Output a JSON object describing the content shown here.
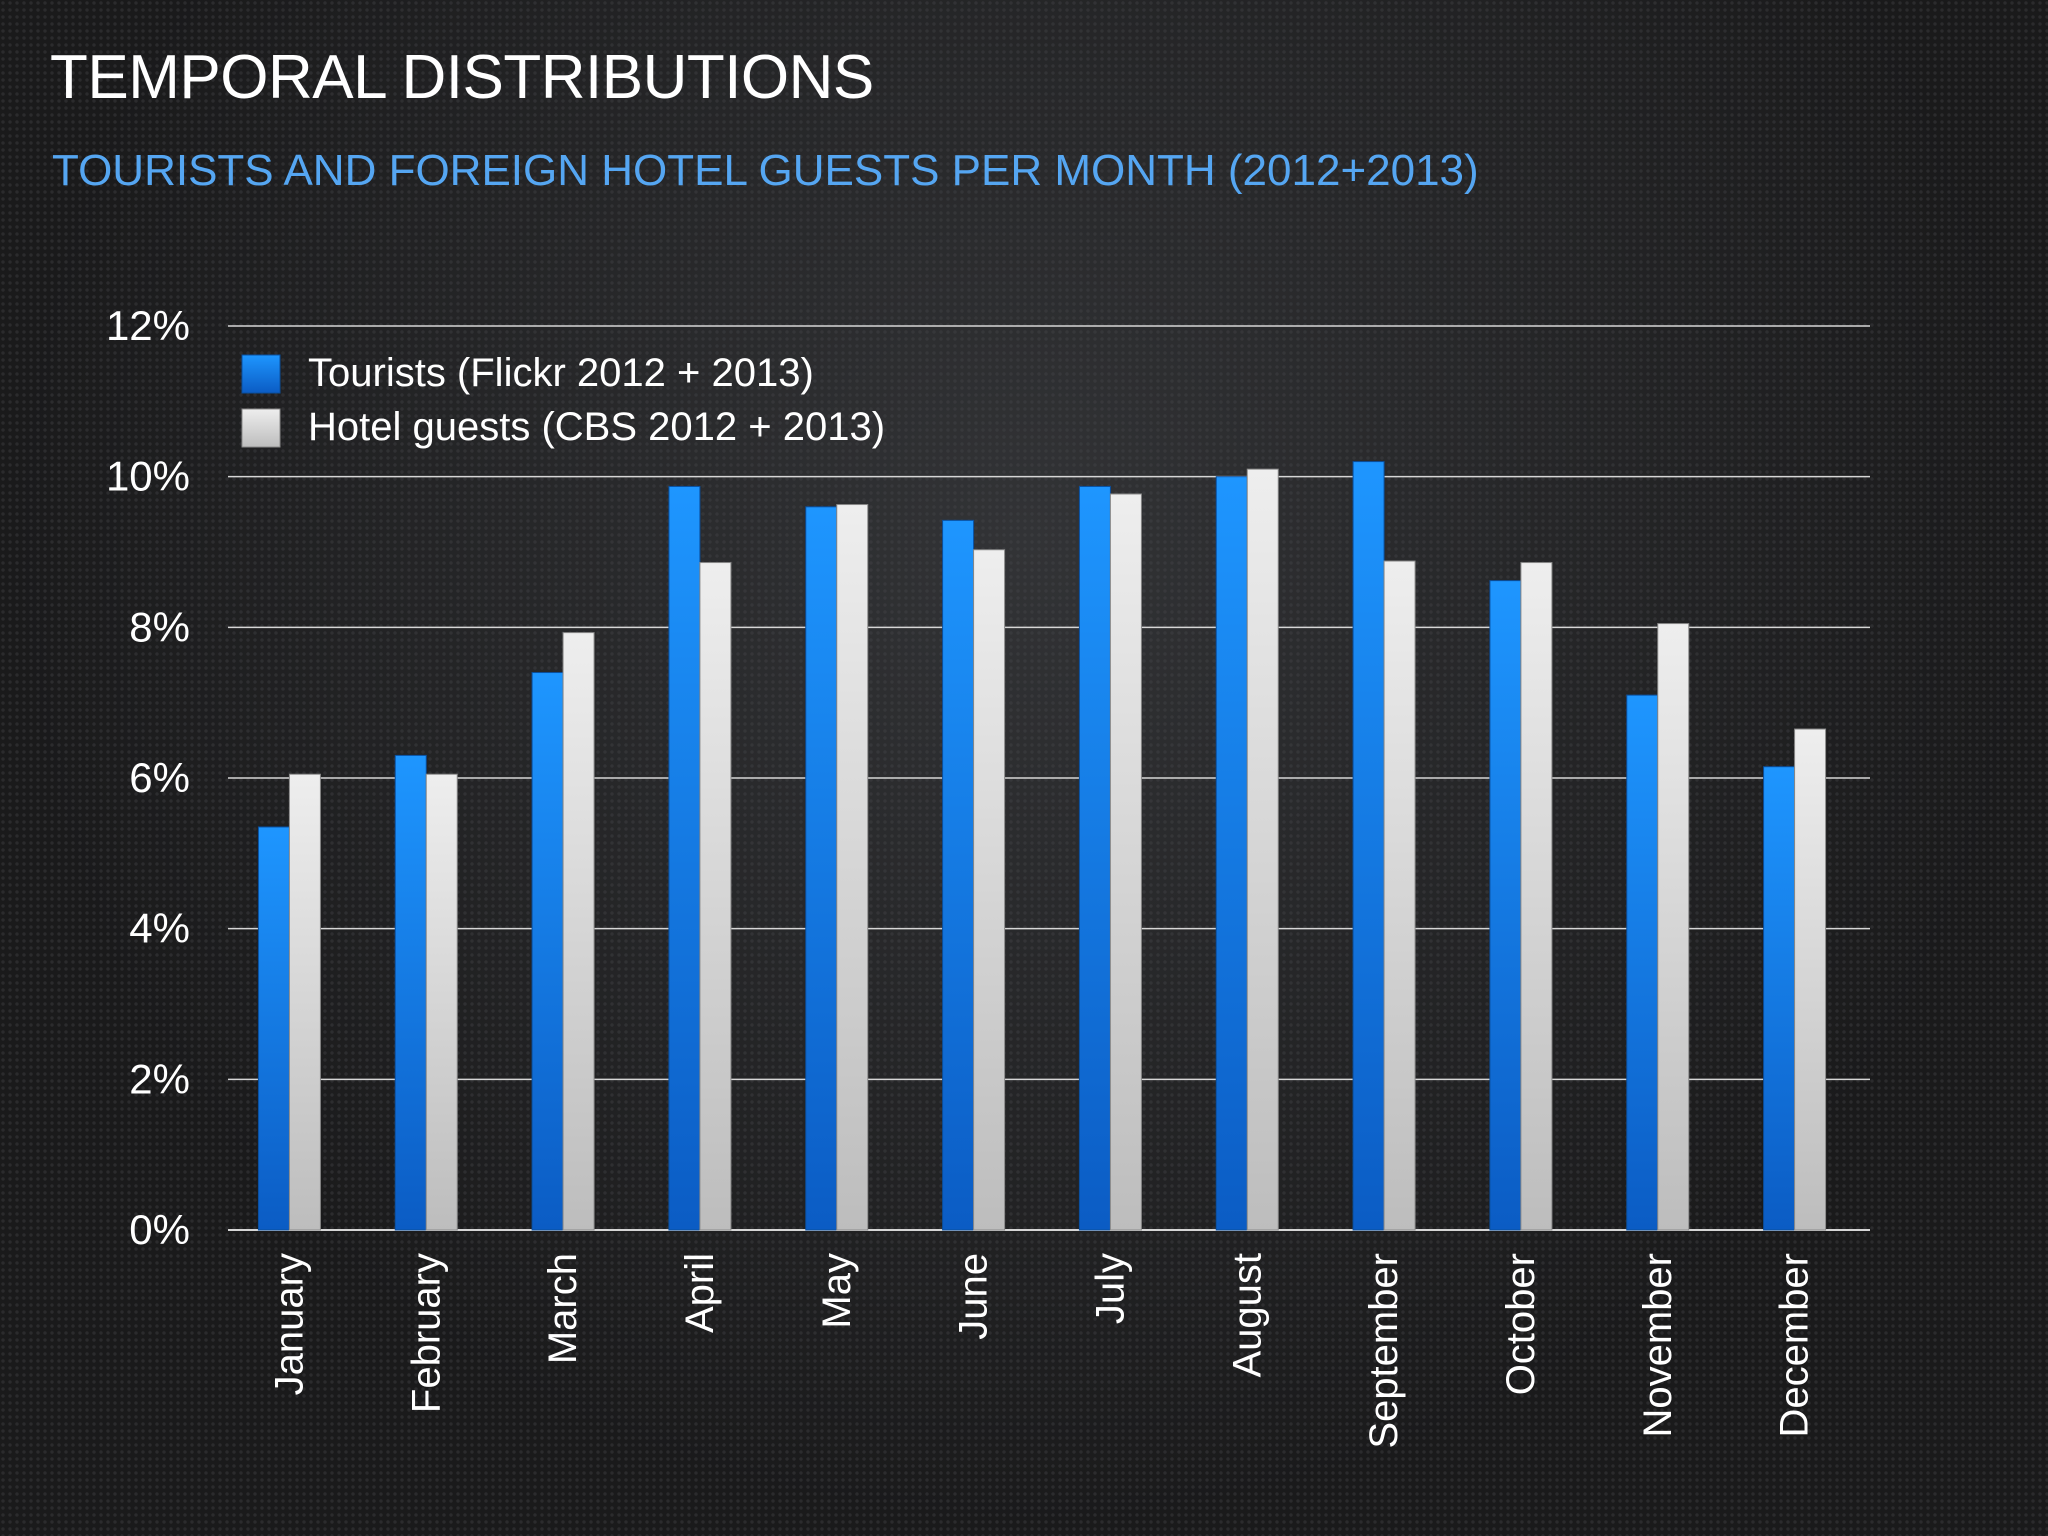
{
  "slide": {
    "title": "TEMPORAL DISTRIBUTIONS",
    "subtitle": "TOURISTS AND FOREIGN HOTEL GUESTS PER MONTH (2012+2013)"
  },
  "chart_data": {
    "type": "bar",
    "categories": [
      "January",
      "February",
      "March",
      "April",
      "May",
      "June",
      "July",
      "August",
      "September",
      "October",
      "November",
      "December"
    ],
    "series": [
      {
        "name": "Tourists (Flickr 2012 + 2013)",
        "color": "#1a8cff",
        "values": [
          5.35,
          6.3,
          7.4,
          9.87,
          9.6,
          9.42,
          9.87,
          10.0,
          10.2,
          8.62,
          7.1,
          6.15
        ]
      },
      {
        "name": "Hotel guests (CBS 2012 + 2013)",
        "color": "#dcdcdc",
        "values": [
          6.05,
          6.05,
          7.93,
          8.86,
          9.63,
          9.03,
          9.77,
          10.1,
          8.88,
          8.86,
          8.05,
          6.65
        ]
      }
    ],
    "yticks": [
      "0%",
      "2%",
      "4%",
      "6%",
      "8%",
      "10%",
      "12%"
    ],
    "ylim": [
      0,
      12
    ],
    "grid": true,
    "legend": "top-left"
  }
}
